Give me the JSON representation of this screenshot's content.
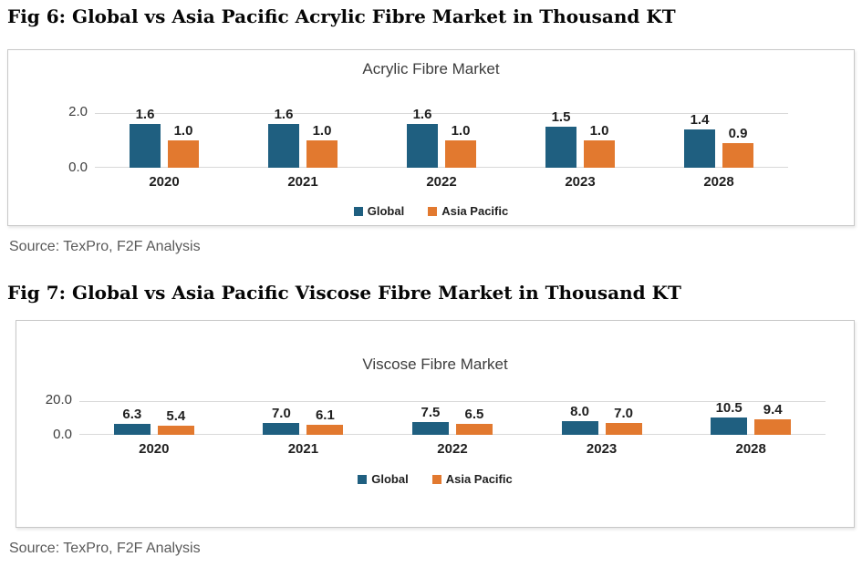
{
  "figures": [
    {
      "heading": "Fig 6: Global vs Asia Pacific Acrylic Fibre Market in Thousand KT",
      "source": "Source: TexPro, F2F Analysis"
    },
    {
      "heading": "Fig 7: Global vs Asia Pacific Viscose Fibre Market in Thousand KT",
      "source": "Source: TexPro, F2F Analysis"
    }
  ],
  "chart_data": [
    {
      "type": "bar",
      "title": "Acrylic Fibre Market",
      "categories": [
        "2020",
        "2021",
        "2022",
        "2023",
        "2028"
      ],
      "series": [
        {
          "name": "Global",
          "values": [
            1.6,
            1.6,
            1.6,
            1.5,
            1.4
          ],
          "color": "#1f5f80"
        },
        {
          "name": "Asia Pacific",
          "values": [
            1.0,
            1.0,
            1.0,
            1.0,
            0.9
          ],
          "color": "#e2792f"
        }
      ],
      "ylim": [
        0,
        2.0
      ],
      "yticks": [
        "2.0",
        "0.0"
      ],
      "xlabel": "",
      "ylabel": "",
      "grid": "horizontal gridlines at 0.0 and 2.0 only",
      "legend_position": "bottom-center"
    },
    {
      "type": "bar",
      "title": "Viscose Fibre Market",
      "categories": [
        "2020",
        "2021",
        "2022",
        "2023",
        "2028"
      ],
      "series": [
        {
          "name": "Global",
          "values": [
            6.3,
            7.0,
            7.5,
            8.0,
            10.5
          ],
          "color": "#1f5f80"
        },
        {
          "name": "Asia Pacific",
          "values": [
            5.4,
            6.1,
            6.5,
            7.0,
            9.4
          ],
          "color": "#e2792f"
        }
      ],
      "ylim": [
        0,
        20.0
      ],
      "yticks": [
        "20.0",
        "0.0"
      ],
      "xlabel": "",
      "ylabel": "",
      "grid": "horizontal gridlines at 0.0 and 20.0 only",
      "legend_position": "bottom-center"
    }
  ],
  "colors": {
    "global_series": "#1f5f80",
    "asia_pacific_series": "#e2792f",
    "gridline": "#d9d9d9",
    "panel_border": "#c8c8c8",
    "chart_title_text": "#3d3d3d",
    "source_text": "#5a5a5a",
    "heading_text": "#060606"
  }
}
